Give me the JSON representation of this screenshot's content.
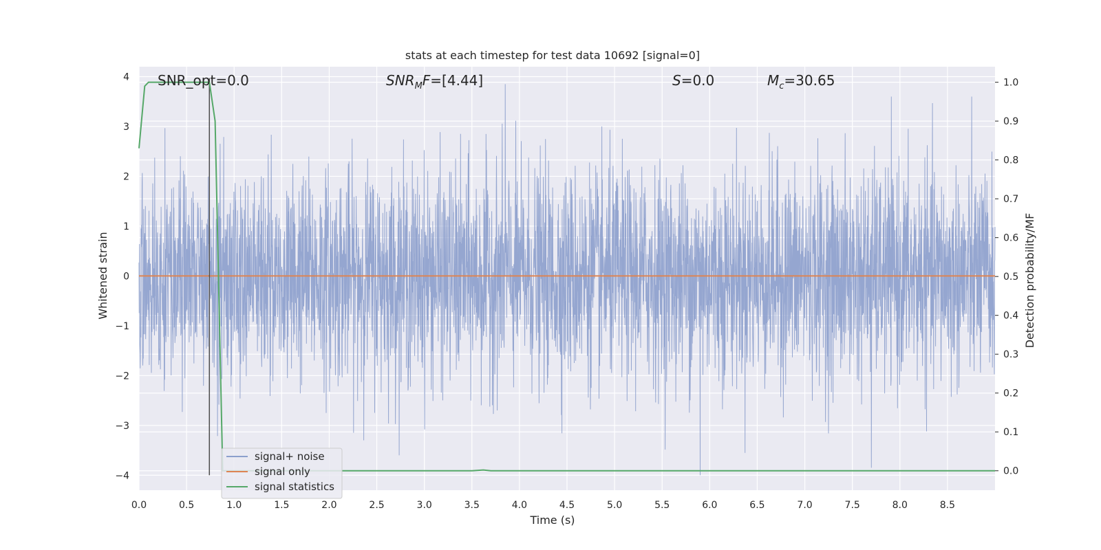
{
  "chart_data": {
    "type": "line",
    "title": "stats at each timestep for test data 10692 [signal=0]",
    "xlabel": "Time (s)",
    "ylabel_left": "Whitened strain",
    "ylabel_right": "Detection probability/MF",
    "xlim": [
      0.0,
      9.0
    ],
    "ylim_left": [
      -4.3,
      4.2
    ],
    "ylim_right": [
      -0.05,
      1.04
    ],
    "x_ticks": [
      "0.0",
      "0.5",
      "1.0",
      "1.5",
      "2.0",
      "2.5",
      "3.0",
      "3.5",
      "4.0",
      "4.5",
      "5.0",
      "5.5",
      "6.0",
      "6.5",
      "7.0",
      "7.5",
      "8.0",
      "8.5"
    ],
    "y_ticks_left": [
      "4",
      "3",
      "2",
      "1",
      "0",
      "−1",
      "−2",
      "−3",
      "−4"
    ],
    "y_ticks_right": [
      "1.0",
      "0.9",
      "0.8",
      "0.7",
      "0.6",
      "0.5",
      "0.4",
      "0.3",
      "0.2",
      "0.1",
      "0.0"
    ],
    "grid": true,
    "legend_position": "lower-left",
    "annotations": [
      {
        "text": "SNR_opt=0.0",
        "x": 0.19,
        "y": 4.02
      },
      {
        "text": "SNR_MF=[4.44]",
        "x": 2.6,
        "y": 4.02
      },
      {
        "text": "S=0.0",
        "x": 5.6,
        "y": 4.02
      },
      {
        "text": "M_c=30.65",
        "x": 6.6,
        "y": 4.02
      }
    ],
    "vline": {
      "x": 0.74,
      "y_from": -4.0,
      "y_to": 3.97,
      "color": "#4d4d4d"
    },
    "series": [
      {
        "name": "signal+ noise",
        "color": "#8c9fcc",
        "description": "Gaussian whitened noise, roughly ±1.5 typical amplitude with spikes reaching about ±3.8",
        "peaks": [
          {
            "x": 3.85,
            "y": 3.85
          },
          {
            "x": 7.7,
            "y": -3.85
          },
          {
            "x": 5.9,
            "y": -4.0
          }
        ]
      },
      {
        "name": "signal only",
        "color": "#dd8452",
        "x": [
          0.0,
          9.0
        ],
        "y": [
          0.0,
          0.0
        ]
      },
      {
        "name": "signal statistics",
        "color": "#55a868",
        "axis": "right",
        "x": [
          0.0,
          0.06,
          0.1,
          0.15,
          0.3,
          0.5,
          0.65,
          0.74,
          0.8,
          0.84,
          0.88,
          3.5,
          3.62,
          3.7,
          9.0
        ],
        "y": [
          0.83,
          0.99,
          1.0,
          1.0,
          1.0,
          1.0,
          1.0,
          1.0,
          0.9,
          0.45,
          0.0,
          0.0,
          0.002,
          0.0,
          0.0
        ]
      }
    ]
  },
  "colors": {
    "plot_bg": "#eaeaf2",
    "grid": "#ffffff",
    "noise": "#8c9fcc",
    "signal_only": "#dd8452",
    "statistics": "#55a868"
  }
}
